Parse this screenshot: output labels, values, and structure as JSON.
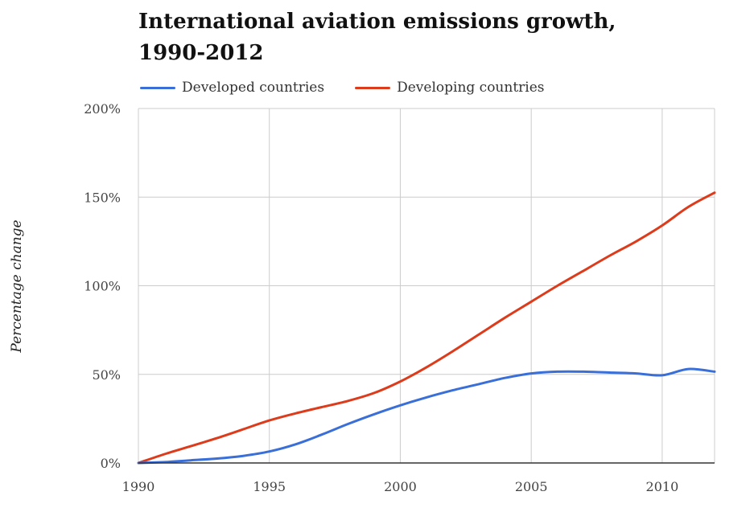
{
  "chart_data": {
    "type": "line",
    "title_line1": "International aviation emissions growth,",
    "title_line2": "1990-2012",
    "xlabel": "",
    "ylabel": "Percentage change",
    "xlim": [
      1990,
      2012
    ],
    "ylim": [
      0,
      200
    ],
    "x_ticks": [
      {
        "value": 1990,
        "label": "1990"
      },
      {
        "value": 1995,
        "label": "1995"
      },
      {
        "value": 2000,
        "label": "2000"
      },
      {
        "value": 2005,
        "label": "2005"
      },
      {
        "value": 2010,
        "label": "2010"
      }
    ],
    "y_ticks": [
      {
        "value": 0,
        "label": "0%"
      },
      {
        "value": 50,
        "label": "50%"
      },
      {
        "value": 100,
        "label": "100%"
      },
      {
        "value": 150,
        "label": "150%"
      },
      {
        "value": 200,
        "label": "200%"
      }
    ],
    "grid": true,
    "legend_position": "top-left",
    "series": [
      {
        "name": "Developed countries",
        "color": "#3a6fd8",
        "points": [
          [
            1990,
            0
          ],
          [
            1991,
            0.5
          ],
          [
            1992,
            1.5
          ],
          [
            1993,
            2.5
          ],
          [
            1994,
            4
          ],
          [
            1995,
            6.5
          ],
          [
            1996,
            10.5
          ],
          [
            1997,
            16
          ],
          [
            1998,
            22
          ],
          [
            1999,
            27.5
          ],
          [
            2000,
            32.5
          ],
          [
            2001,
            37
          ],
          [
            2002,
            41
          ],
          [
            2003,
            44.5
          ],
          [
            2004,
            48
          ],
          [
            2005,
            50.5
          ],
          [
            2006,
            51.5
          ],
          [
            2007,
            51.5
          ],
          [
            2008,
            51
          ],
          [
            2009,
            50.5
          ],
          [
            2010,
            49.5
          ],
          [
            2011,
            53
          ],
          [
            2012,
            51.5
          ]
        ]
      },
      {
        "name": "Developing countries",
        "color": "#dc3c1c",
        "points": [
          [
            1990,
            0
          ],
          [
            1991,
            5
          ],
          [
            1992,
            9.5
          ],
          [
            1993,
            14
          ],
          [
            1994,
            19
          ],
          [
            1995,
            24
          ],
          [
            1996,
            28
          ],
          [
            1997,
            31.5
          ],
          [
            1998,
            35
          ],
          [
            1999,
            39.5
          ],
          [
            2000,
            46
          ],
          [
            2001,
            54
          ],
          [
            2002,
            63
          ],
          [
            2003,
            72.5
          ],
          [
            2004,
            82
          ],
          [
            2005,
            91
          ],
          [
            2006,
            100
          ],
          [
            2007,
            108.5
          ],
          [
            2008,
            117
          ],
          [
            2009,
            125
          ],
          [
            2010,
            134
          ],
          [
            2011,
            144.5
          ],
          [
            2012,
            152.5
          ]
        ]
      }
    ]
  }
}
